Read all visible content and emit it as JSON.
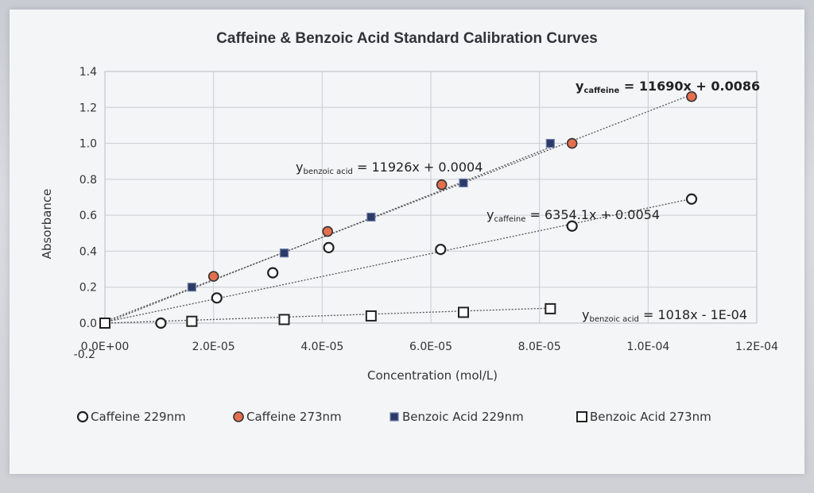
{
  "chart_data": {
    "type": "scatter",
    "title": "Caffeine & Benzoic Acid Standard Calibration Curves",
    "xlabel": "Concentration (mol/L)",
    "ylabel": "Absorbance",
    "xlim": [
      0,
      0.00012
    ],
    "ylim": [
      0,
      1.4
    ],
    "x_ticks": [
      "0.0E+00",
      "2.0E-05",
      "4.0E-05",
      "6.0E-05",
      "8.0E-05",
      "1.0E-04",
      "1.2E-04"
    ],
    "y_ticks": [
      "0.0",
      "0.2",
      "0.4",
      "0.6",
      "0.8",
      "1.0",
      "1.2",
      "1.4"
    ],
    "extra_tick_label": "-0.2",
    "grid": true,
    "legend_position": "bottom",
    "series": [
      {
        "name": "Caffeine 229nm",
        "marker": "open-circle",
        "color": "#222222",
        "x": [
          0,
          1.03e-05,
          2.06e-05,
          3.09e-05,
          4.12e-05,
          6.18e-05,
          8.6e-05,
          0.000108
        ],
        "y": [
          0,
          0.0,
          0.14,
          0.28,
          0.42,
          0.41,
          0.54,
          0.69
        ]
      },
      {
        "name": "Caffeine 273nm",
        "marker": "filled-circle",
        "color": "#e36f4f",
        "x": [
          0,
          2e-05,
          4.1e-05,
          6.2e-05,
          8.6e-05,
          0.000108
        ],
        "y": [
          0,
          0.26,
          0.51,
          0.77,
          1.0,
          1.26
        ]
      },
      {
        "name": "Benzoic Acid 229nm",
        "marker": "filled-square",
        "color": "#2b3a67",
        "x": [
          0,
          1.6e-05,
          3.3e-05,
          4.9e-05,
          6.6e-05,
          8.2e-05
        ],
        "y": [
          0,
          0.2,
          0.39,
          0.59,
          0.78,
          1.0
        ]
      },
      {
        "name": "Benzoic Acid 273nm",
        "marker": "open-square",
        "color": "#222222",
        "x": [
          0,
          1.6e-05,
          3.3e-05,
          4.9e-05,
          6.6e-05,
          8.2e-05
        ],
        "y": [
          0,
          0.01,
          0.02,
          0.04,
          0.06,
          0.08
        ]
      }
    ],
    "trendlines": [
      {
        "series": "Caffeine 273nm",
        "slope": 11690,
        "intercept": 0.0086,
        "x_end": 0.000108
      },
      {
        "series": "Benzoic Acid 229nm",
        "slope": 11926,
        "intercept": 0.0004,
        "x_end": 8.2e-05
      },
      {
        "series": "Caffeine 229nm",
        "slope": 6354.1,
        "intercept": 0.0054,
        "x_end": 0.000108
      },
      {
        "series": "Benzoic Acid 273nm",
        "slope": 1018,
        "intercept": -0.0001,
        "x_end": 8.2e-05
      }
    ],
    "annotations": [
      {
        "y_label": "y",
        "sub": "caffeine",
        "rest": " = 11690x + 0.0086",
        "color": "#c0392b"
      },
      {
        "y_label": "y",
        "sub": "benzoic acid",
        "rest": " = 11926x + 0.0004",
        "color": "#222222"
      },
      {
        "y_label": "y",
        "sub": "caffeine",
        "rest": " = 6354.1x + 0.0054",
        "color": "#222222"
      },
      {
        "y_label": "y",
        "sub": "benzoic acid",
        "rest": " = 1018x - 1E-04",
        "color": "#222222"
      }
    ]
  }
}
